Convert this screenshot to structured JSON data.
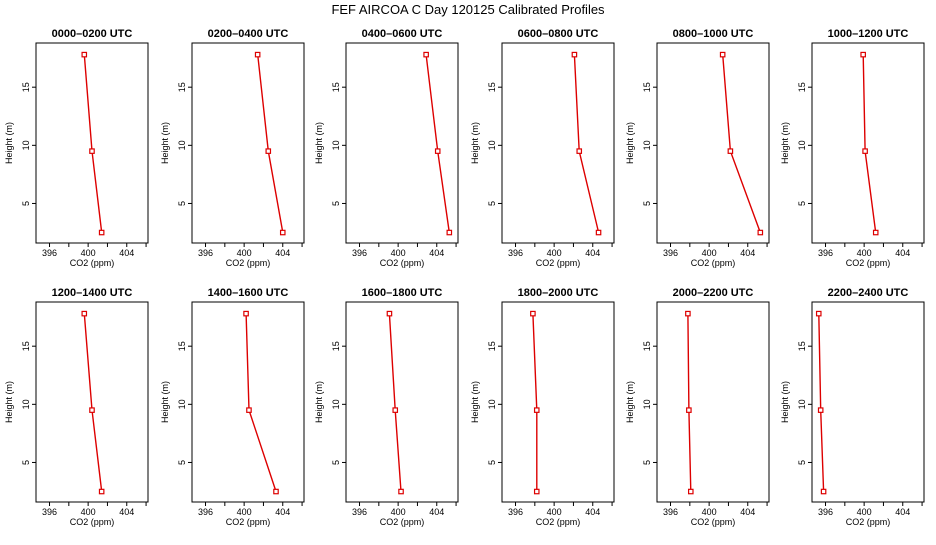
{
  "figure": {
    "title": "FEF AIRCOA C  Day 120125  Calibrated Profiles"
  },
  "colors": {
    "line": "#dd0000",
    "axis": "#000000"
  },
  "chart_data": [
    {
      "type": "line",
      "title": "0000–0200 UTC",
      "xlabel": "CO2 (ppm)",
      "ylabel": "Height (m)",
      "xlim": [
        394.6,
        406.2
      ],
      "ylim": [
        1.6,
        18.8
      ],
      "xticks": [
        396,
        400,
        404
      ],
      "yticks": [
        5,
        10,
        15
      ],
      "series": [
        {
          "x": [
            399.6,
            400.4,
            401.4
          ],
          "y": [
            17.8,
            9.5,
            2.5
          ]
        }
      ]
    },
    {
      "type": "line",
      "title": "0200–0400 UTC",
      "xlabel": "CO2 (ppm)",
      "ylabel": "Height (m)",
      "xlim": [
        394.6,
        406.2
      ],
      "ylim": [
        1.6,
        18.8
      ],
      "xticks": [
        396,
        400,
        404
      ],
      "yticks": [
        5,
        10,
        15
      ],
      "series": [
        {
          "x": [
            401.4,
            402.5,
            404.0
          ],
          "y": [
            17.8,
            9.5,
            2.5
          ]
        }
      ]
    },
    {
      "type": "line",
      "title": "0400–0600 UTC",
      "xlabel": "CO2 (ppm)",
      "ylabel": "Height (m)",
      "xlim": [
        394.6,
        406.2
      ],
      "ylim": [
        1.6,
        18.8
      ],
      "xticks": [
        396,
        400,
        404
      ],
      "yticks": [
        5,
        10,
        15
      ],
      "series": [
        {
          "x": [
            402.9,
            404.1,
            405.3
          ],
          "y": [
            17.8,
            9.5,
            2.5
          ]
        }
      ]
    },
    {
      "type": "line",
      "title": "0600–0800 UTC",
      "xlabel": "CO2 (ppm)",
      "ylabel": "Height (m)",
      "xlim": [
        394.6,
        406.2
      ],
      "ylim": [
        1.6,
        18.8
      ],
      "xticks": [
        396,
        400,
        404
      ],
      "yticks": [
        5,
        10,
        15
      ],
      "series": [
        {
          "x": [
            402.1,
            402.6,
            404.6
          ],
          "y": [
            17.8,
            9.5,
            2.5
          ]
        }
      ]
    },
    {
      "type": "line",
      "title": "0800–1000 UTC",
      "xlabel": "CO2 (ppm)",
      "ylabel": "Height (m)",
      "xlim": [
        394.6,
        406.2
      ],
      "ylim": [
        1.6,
        18.8
      ],
      "xticks": [
        396,
        400,
        404
      ],
      "yticks": [
        5,
        10,
        15
      ],
      "series": [
        {
          "x": [
            401.4,
            402.2,
            405.3
          ],
          "y": [
            17.8,
            9.5,
            2.5
          ]
        }
      ]
    },
    {
      "type": "line",
      "title": "1000–1200 UTC",
      "xlabel": "CO2 (ppm)",
      "ylabel": "Height (m)",
      "xlim": [
        394.6,
        406.2
      ],
      "ylim": [
        1.6,
        18.8
      ],
      "xticks": [
        396,
        400,
        404
      ],
      "yticks": [
        5,
        10,
        15
      ],
      "series": [
        {
          "x": [
            399.9,
            400.1,
            401.2
          ],
          "y": [
            17.8,
            9.5,
            2.5
          ]
        }
      ]
    },
    {
      "type": "line",
      "title": "1200–1400 UTC",
      "xlabel": "CO2 (ppm)",
      "ylabel": "Height (m)",
      "xlim": [
        394.6,
        406.2
      ],
      "ylim": [
        1.6,
        18.8
      ],
      "xticks": [
        396,
        400,
        404
      ],
      "yticks": [
        5,
        10,
        15
      ],
      "series": [
        {
          "x": [
            399.6,
            400.4,
            401.4
          ],
          "y": [
            17.8,
            9.5,
            2.5
          ]
        }
      ]
    },
    {
      "type": "line",
      "title": "1400–1600 UTC",
      "xlabel": "CO2 (ppm)",
      "ylabel": "Height (m)",
      "xlim": [
        394.6,
        406.2
      ],
      "ylim": [
        1.6,
        18.8
      ],
      "xticks": [
        396,
        400,
        404
      ],
      "yticks": [
        5,
        10,
        15
      ],
      "series": [
        {
          "x": [
            400.2,
            400.5,
            403.3
          ],
          "y": [
            17.8,
            9.5,
            2.5
          ]
        }
      ]
    },
    {
      "type": "line",
      "title": "1600–1800 UTC",
      "xlabel": "CO2 (ppm)",
      "ylabel": "Height (m)",
      "xlim": [
        394.6,
        406.2
      ],
      "ylim": [
        1.6,
        18.8
      ],
      "xticks": [
        396,
        400,
        404
      ],
      "yticks": [
        5,
        10,
        15
      ],
      "series": [
        {
          "x": [
            399.1,
            399.7,
            400.3
          ],
          "y": [
            17.8,
            9.5,
            2.5
          ]
        }
      ]
    },
    {
      "type": "line",
      "title": "1800–2000 UTC",
      "xlabel": "CO2 (ppm)",
      "ylabel": "Height (m)",
      "xlim": [
        394.6,
        406.2
      ],
      "ylim": [
        1.6,
        18.8
      ],
      "xticks": [
        396,
        400,
        404
      ],
      "yticks": [
        5,
        10,
        15
      ],
      "series": [
        {
          "x": [
            397.8,
            398.2,
            398.2
          ],
          "y": [
            17.8,
            9.5,
            2.5
          ]
        }
      ]
    },
    {
      "type": "line",
      "title": "2000–2200 UTC",
      "xlabel": "CO2 (ppm)",
      "ylabel": "Height (m)",
      "xlim": [
        394.6,
        406.2
      ],
      "ylim": [
        1.6,
        18.8
      ],
      "xticks": [
        396,
        400,
        404
      ],
      "yticks": [
        5,
        10,
        15
      ],
      "series": [
        {
          "x": [
            397.8,
            397.9,
            398.1
          ],
          "y": [
            17.8,
            9.5,
            2.5
          ]
        }
      ]
    },
    {
      "type": "line",
      "title": "2200–2400 UTC",
      "xlabel": "CO2 (ppm)",
      "ylabel": "Height (m)",
      "xlim": [
        394.6,
        406.2
      ],
      "ylim": [
        1.6,
        18.8
      ],
      "xticks": [
        396,
        400,
        404
      ],
      "yticks": [
        5,
        10,
        15
      ],
      "series": [
        {
          "x": [
            395.3,
            395.5,
            395.8
          ],
          "y": [
            17.8,
            9.5,
            2.5
          ]
        }
      ]
    }
  ]
}
